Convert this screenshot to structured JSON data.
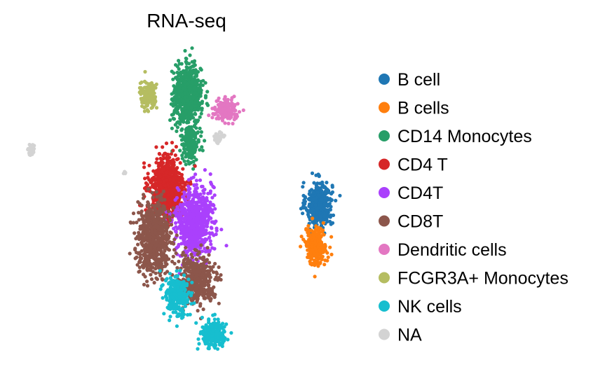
{
  "chart_data": {
    "type": "scatter",
    "title": "RNA-seq",
    "xlabel": "",
    "ylabel": "",
    "xlim": [
      0,
      100
    ],
    "ylim": [
      0,
      100
    ],
    "grid": false,
    "axes_visible": false,
    "legend_position": "right",
    "series": [
      {
        "name": "B cell",
        "color": "#1f77b4",
        "clusters": [
          {
            "cx": 90.5,
            "cy": 48.5,
            "sx": 2.3,
            "sy": 4.3,
            "n": 420
          }
        ]
      },
      {
        "name": "B cells",
        "color": "#ff7f0e",
        "clusters": [
          {
            "cx": 89.5,
            "cy": 34.5,
            "sx": 1.9,
            "sy": 3.6,
            "n": 260
          }
        ]
      },
      {
        "name": "CD14 Monocytes",
        "color": "#279e68",
        "clusters": [
          {
            "cx": 50.5,
            "cy": 84.5,
            "sx": 2.5,
            "sy": 5.6,
            "n": 700
          },
          {
            "cx": 51.5,
            "cy": 68.5,
            "sx": 1.6,
            "sy": 3.2,
            "n": 160
          }
        ]
      },
      {
        "name": "CD4 T",
        "color": "#d62728",
        "clusters": [
          {
            "cx": 44.5,
            "cy": 53.5,
            "sx": 3.1,
            "sy": 6.4,
            "n": 800
          }
        ]
      },
      {
        "name": "CD4T",
        "color": "#aa40fc",
        "clusters": [
          {
            "cx": 52.5,
            "cy": 42.5,
            "sx": 3.1,
            "sy": 6.8,
            "n": 750
          }
        ]
      },
      {
        "name": "CD8T",
        "color": "#8c564b",
        "clusters": [
          {
            "cx": 40.5,
            "cy": 37.5,
            "sx": 3.0,
            "sy": 6.8,
            "n": 650
          },
          {
            "cx": 53.5,
            "cy": 23.5,
            "sx": 3.3,
            "sy": 4.5,
            "n": 420
          }
        ]
      },
      {
        "name": "Dendritic cells",
        "color": "#e377c2",
        "clusters": [
          {
            "cx": 62.0,
            "cy": 79.5,
            "sx": 2.1,
            "sy": 2.1,
            "n": 150
          }
        ]
      },
      {
        "name": "FCGR3A+ Monocytes",
        "color": "#b5bd61",
        "clusters": [
          {
            "cx": 38.5,
            "cy": 85.0,
            "sx": 1.5,
            "sy": 2.8,
            "n": 130
          }
        ]
      },
      {
        "name": "NK cells",
        "color": "#17becf",
        "clusters": [
          {
            "cx": 47.5,
            "cy": 18.0,
            "sx": 2.1,
            "sy": 4.0,
            "n": 260
          },
          {
            "cx": 58.5,
            "cy": 5.5,
            "sx": 2.2,
            "sy": 2.5,
            "n": 240
          }
        ]
      },
      {
        "name": "NA",
        "color": "#d3d3d3",
        "clusters": [
          {
            "cx": 3.0,
            "cy": 66.5,
            "sx": 0.6,
            "sy": 1.1,
            "n": 35
          },
          {
            "cx": 60.0,
            "cy": 70.5,
            "sx": 0.8,
            "sy": 1.0,
            "n": 35
          },
          {
            "cx": 31.5,
            "cy": 59.0,
            "sx": 0.3,
            "sy": 0.4,
            "n": 5
          }
        ]
      }
    ]
  }
}
